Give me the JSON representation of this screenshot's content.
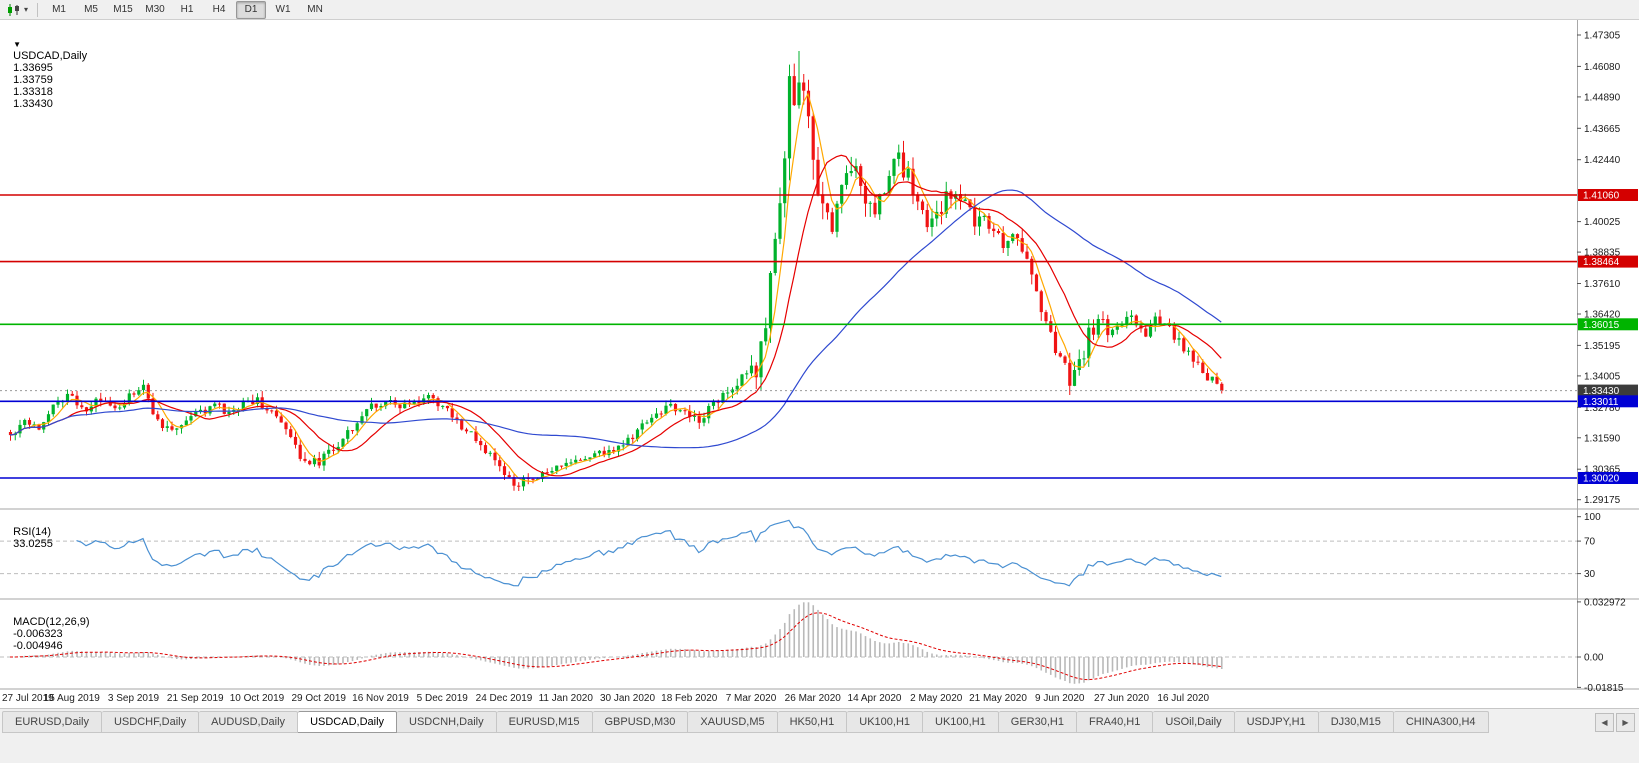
{
  "toolbar": {
    "timeframes": [
      "M1",
      "M5",
      "M15",
      "M30",
      "H1",
      "H4",
      "D1",
      "W1",
      "MN"
    ],
    "active_timeframe": "D1"
  },
  "chart_header": {
    "symbol": "USDCAD,Daily",
    "open": "1.33695",
    "high": "1.33759",
    "low": "1.33318",
    "close": "1.33430"
  },
  "chart_data": {
    "type": "candlestick",
    "symbol": "USDCAD",
    "period": "Daily",
    "num_candles": 256,
    "candles_per_label": 13,
    "x_labels": [
      "27 Jul 2019",
      "15 Aug 2019",
      "3 Sep 2019",
      "21 Sep 2019",
      "10 Oct 2019",
      "29 Oct 2019",
      "16 Nov 2019",
      "5 Dec 2019",
      "24 Dec 2019",
      "11 Jan 2020",
      "30 Jan 2020",
      "18 Feb 2020",
      "7 Mar 2020",
      "26 Mar 2020",
      "14 Apr 2020",
      "2 May 2020",
      "21 May 2020",
      "9 Jun 2020",
      "27 Jun 2020",
      "16 Jul 2020"
    ],
    "price_range": [
      1.2885,
      1.4785
    ],
    "price_axis_ticks": [
      "1.47305",
      "1.46080",
      "1.44890",
      "1.43665",
      "1.42440",
      "1.40025",
      "1.38835",
      "1.37610",
      "1.36420",
      "1.35195",
      "1.34005",
      "1.32780",
      "1.31590",
      "1.30365",
      "1.29175"
    ],
    "horizontal_lines": [
      {
        "label": "1.41060",
        "price": 1.4106,
        "color": "#d40000"
      },
      {
        "label": "1.38464",
        "price": 1.38464,
        "color": "#d40000"
      },
      {
        "label": "1.36015",
        "price": 1.36015,
        "color": "#00b400"
      },
      {
        "label": "1.33011",
        "price": 1.33011,
        "color": "#0000d4"
      },
      {
        "label": "1.30020",
        "price": 1.3002,
        "color": "#0000d4"
      }
    ],
    "current_price_badge": {
      "label": "1.33430",
      "color": "#3c3c3c"
    },
    "colors": {
      "up": "#00b22c",
      "down": "#f01414"
    },
    "moving_averages": [
      {
        "period": 5,
        "color": "#ffa800"
      },
      {
        "period": 13,
        "color": "#e60000"
      },
      {
        "period": 50,
        "color": "#2f49d0"
      }
    ],
    "close_anchors": [
      [
        0,
        1.3165
      ],
      [
        3,
        1.3235
      ],
      [
        6,
        1.3205
      ],
      [
        9,
        1.329
      ],
      [
        13,
        1.332
      ],
      [
        16,
        1.3265
      ],
      [
        19,
        1.331
      ],
      [
        23,
        1.3285
      ],
      [
        26,
        1.3335
      ],
      [
        28,
        1.335
      ],
      [
        31,
        1.322
      ],
      [
        34,
        1.3185
      ],
      [
        37,
        1.323
      ],
      [
        40,
        1.326
      ],
      [
        43,
        1.329
      ],
      [
        46,
        1.3245
      ],
      [
        49,
        1.3295
      ],
      [
        52,
        1.331
      ],
      [
        55,
        1.326
      ],
      [
        58,
        1.318
      ],
      [
        61,
        1.309
      ],
      [
        64,
        1.306
      ],
      [
        67,
        1.3095
      ],
      [
        70,
        1.316
      ],
      [
        73,
        1.323
      ],
      [
        76,
        1.328
      ],
      [
        79,
        1.3305
      ],
      [
        82,
        1.327
      ],
      [
        85,
        1.33
      ],
      [
        88,
        1.3315
      ],
      [
        91,
        1.328
      ],
      [
        94,
        1.322
      ],
      [
        97,
        1.317
      ],
      [
        100,
        1.311
      ],
      [
        103,
        1.304
      ],
      [
        106,
        1.2975
      ],
      [
        109,
        1.2995
      ],
      [
        112,
        1.3015
      ],
      [
        115,
        1.304
      ],
      [
        118,
        1.306
      ],
      [
        121,
        1.308
      ],
      [
        124,
        1.3095
      ],
      [
        127,
        1.3115
      ],
      [
        130,
        1.3145
      ],
      [
        133,
        1.3205
      ],
      [
        136,
        1.3255
      ],
      [
        139,
        1.3285
      ],
      [
        142,
        1.3255
      ],
      [
        145,
        1.3235
      ],
      [
        148,
        1.3295
      ],
      [
        151,
        1.3345
      ],
      [
        154,
        1.3385
      ],
      [
        157,
        1.343
      ],
      [
        159,
        1.358
      ],
      [
        161,
        1.392
      ],
      [
        163,
        1.428
      ],
      [
        164,
        1.451
      ],
      [
        165,
        1.443
      ],
      [
        166,
        1.46
      ],
      [
        167,
        1.448
      ],
      [
        169,
        1.423
      ],
      [
        171,
        1.406
      ],
      [
        173,
        1.399
      ],
      [
        175,
        1.415
      ],
      [
        177,
        1.4245
      ],
      [
        179,
        1.412
      ],
      [
        181,
        1.405
      ],
      [
        183,
        1.4085
      ],
      [
        185,
        1.418
      ],
      [
        187,
        1.4235
      ],
      [
        189,
        1.417
      ],
      [
        191,
        1.409
      ],
      [
        193,
        1.399
      ],
      [
        195,
        1.4015
      ],
      [
        197,
        1.409
      ],
      [
        199,
        1.414
      ],
      [
        201,
        1.408
      ],
      [
        203,
        1.3985
      ],
      [
        205,
        1.402
      ],
      [
        207,
        1.397
      ],
      [
        209,
        1.3905
      ],
      [
        211,
        1.398
      ],
      [
        213,
        1.39
      ],
      [
        215,
        1.379
      ],
      [
        217,
        1.368
      ],
      [
        219,
        1.356
      ],
      [
        221,
        1.347
      ],
      [
        223,
        1.3395
      ],
      [
        225,
        1.3435
      ],
      [
        227,
        1.356
      ],
      [
        229,
        1.362
      ],
      [
        231,
        1.3575
      ],
      [
        233,
        1.36
      ],
      [
        235,
        1.3645
      ],
      [
        237,
        1.3605
      ],
      [
        239,
        1.3575
      ],
      [
        241,
        1.362
      ],
      [
        243,
        1.359
      ],
      [
        245,
        1.356
      ],
      [
        247,
        1.351
      ],
      [
        249,
        1.3455
      ],
      [
        251,
        1.341
      ],
      [
        253,
        1.338
      ],
      [
        255,
        1.3343
      ]
    ],
    "vol_anchors": [
      [
        0,
        0.0045
      ],
      [
        40,
        0.004
      ],
      [
        60,
        0.005
      ],
      [
        80,
        0.004
      ],
      [
        100,
        0.004
      ],
      [
        120,
        0.0035
      ],
      [
        140,
        0.004
      ],
      [
        152,
        0.005
      ],
      [
        158,
        0.0095
      ],
      [
        163,
        0.016
      ],
      [
        168,
        0.015
      ],
      [
        175,
        0.011
      ],
      [
        185,
        0.009
      ],
      [
        195,
        0.008
      ],
      [
        205,
        0.007
      ],
      [
        215,
        0.0075
      ],
      [
        223,
        0.0085
      ],
      [
        230,
        0.006
      ],
      [
        240,
        0.005
      ],
      [
        255,
        0.004
      ]
    ],
    "spike_high": [
      166,
      1.4668
    ],
    "spike_low": [
      106,
      1.2952
    ],
    "rsi": {
      "label": "RSI(14)",
      "value": "33.0255",
      "period": 14,
      "levels": [
        30,
        70
      ],
      "axis_ticks": [
        "100",
        "70",
        "30"
      ],
      "range": [
        0,
        107
      ],
      "color": "#4a90d2"
    },
    "macd": {
      "label": "MACD(12,26,9)",
      "main_value": "-0.006323",
      "signal_value": "-0.004946",
      "fast": 12,
      "slow": 26,
      "signal_period": 9,
      "axis_ticks": [
        "0.032972",
        "0.00",
        "-0.01815"
      ],
      "range": [
        -0.0185,
        0.0335
      ],
      "histogram_color": "#b9b9b9",
      "signal_color": "#e00000"
    }
  },
  "tabs": {
    "items": [
      "EURUSD,Daily",
      "USDCHF,Daily",
      "AUDUSD,Daily",
      "USDCAD,Daily",
      "USDCNH,Daily",
      "EURUSD,M15",
      "GBPUSD,M30",
      "XAUUSD,M5",
      "HK50,H1",
      "UK100,H1",
      "UK100,H1",
      "GER30,H1",
      "FRA40,H1",
      "USOil,Daily",
      "USDJPY,H1",
      "DJ30,M15",
      "CHINA300,H4"
    ],
    "active_index": 3,
    "scroll_left_icon": "◀",
    "scroll_right_icon": "▶"
  }
}
